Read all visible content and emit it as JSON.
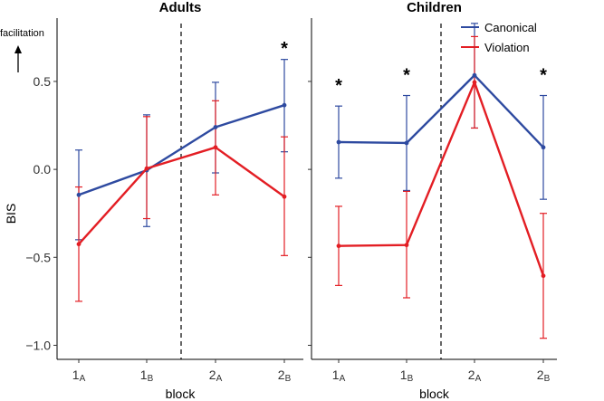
{
  "chart_data": {
    "type": "line",
    "y_axis": {
      "label": "BIS",
      "ylim": [
        -1.08,
        0.86
      ],
      "ticks": [
        0.5,
        0.0,
        -0.5,
        -1.0
      ],
      "tick_labels": [
        "0.5",
        "0.0",
        "−0.5",
        "−1.0"
      ]
    },
    "x_axis": {
      "label": "block",
      "categories": [
        {
          "main": "1",
          "sub": "A"
        },
        {
          "main": "1",
          "sub": "B"
        },
        {
          "main": "2",
          "sub": "A"
        },
        {
          "main": "2",
          "sub": "B"
        }
      ]
    },
    "annotation": {
      "text": "facilitation"
    },
    "legend": [
      {
        "name": "Canonical",
        "color": "#2e4aa0"
      },
      {
        "name": "Violation",
        "color": "#e31e24"
      }
    ],
    "panels": [
      {
        "title": "Adults",
        "series": [
          {
            "name": "Canonical",
            "color": "#2e4aa0",
            "values": [
              -0.145,
              -0.005,
              0.24,
              0.365
            ],
            "lower": [
              -0.4,
              -0.325,
              -0.02,
              0.1
            ],
            "upper": [
              0.11,
              0.31,
              0.495,
              0.625
            ]
          },
          {
            "name": "Violation",
            "color": "#e31e24",
            "values": [
              -0.425,
              0.005,
              0.125,
              -0.155
            ],
            "lower": [
              -0.75,
              -0.28,
              -0.145,
              -0.49
            ],
            "upper": [
              -0.1,
              0.3,
              0.39,
              0.185
            ]
          }
        ],
        "significance": [
          {
            "category_index": 3,
            "text": "*"
          }
        ]
      },
      {
        "title": "Children",
        "series": [
          {
            "name": "Canonical",
            "color": "#2e4aa0",
            "values": [
              0.155,
              0.15,
              0.535,
              0.125
            ],
            "lower": [
              -0.05,
              -0.12,
              0.235,
              -0.17
            ],
            "upper": [
              0.36,
              0.42,
              0.83,
              0.42
            ]
          },
          {
            "name": "Violation",
            "color": "#e31e24",
            "values": [
              -0.435,
              -0.43,
              0.495,
              -0.605
            ],
            "lower": [
              -0.66,
              -0.73,
              0.235,
              -0.96
            ],
            "upper": [
              -0.21,
              -0.125,
              0.755,
              -0.25
            ]
          }
        ],
        "significance": [
          {
            "category_index": 0,
            "text": "*"
          },
          {
            "category_index": 1,
            "text": "*"
          },
          {
            "category_index": 3,
            "text": "*"
          }
        ]
      }
    ]
  }
}
